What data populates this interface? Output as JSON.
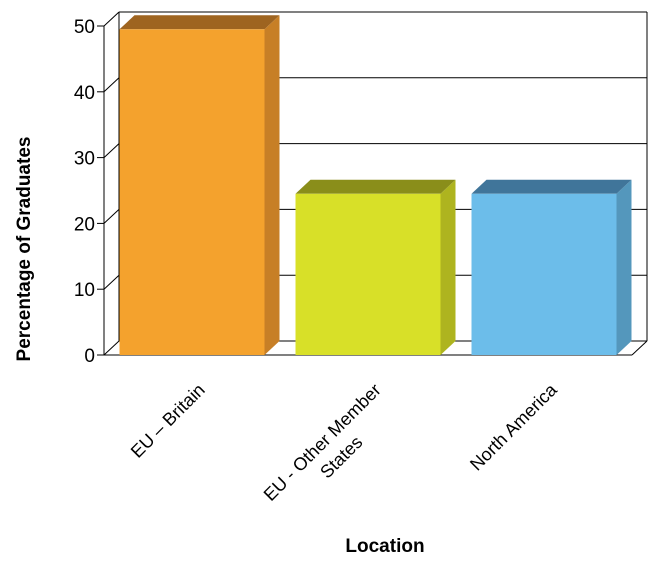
{
  "chart_data": {
    "type": "bar",
    "title": "",
    "xlabel": "Location",
    "ylabel": "Percentage of Graduates",
    "categories": [
      {
        "line1": "EU – Britain",
        "line2": ""
      },
      {
        "line1": "EU - Other Member",
        "line2": "States"
      },
      {
        "line1": "North America",
        "line2": ""
      }
    ],
    "values": [
      49.5,
      24.5,
      24.5
    ],
    "ylim": [
      0,
      50
    ],
    "yticks": [
      "0",
      "10",
      "20",
      "30",
      "40",
      "50"
    ],
    "grid": true,
    "legend": "none",
    "bar_colors": [
      {
        "front": "#F4A22D",
        "side": "#C77F26",
        "top": "#9E6420"
      },
      {
        "front": "#D8E028",
        "side": "#AEB41F",
        "top": "#8A8E1A"
      },
      {
        "front": "#6CBDEA",
        "side": "#5497BC",
        "top": "#40759A"
      }
    ]
  }
}
